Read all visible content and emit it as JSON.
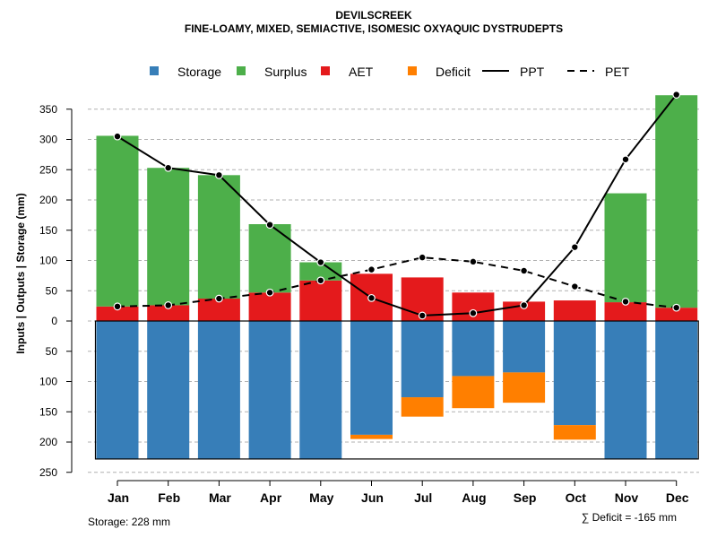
{
  "chart_data": {
    "type": "bar",
    "title": "DEVILSCREEK",
    "subtitle": "FINE-LOAMY, MIXED, SEMIACTIVE, ISOMESIC OXYAQUIC DYSTRUDEPTS",
    "ylabel": "Inputs | Outputs | Storage    (mm)",
    "categories": [
      "Jan",
      "Feb",
      "Mar",
      "Apr",
      "May",
      "Jun",
      "Jul",
      "Aug",
      "Sep",
      "Oct",
      "Nov",
      "Dec"
    ],
    "ylim": [
      -250,
      350
    ],
    "yticks": [
      {
        "value": 350,
        "label": "350"
      },
      {
        "value": 300,
        "label": "300"
      },
      {
        "value": 250,
        "label": "250"
      },
      {
        "value": 200,
        "label": "200"
      },
      {
        "value": 150,
        "label": "150"
      },
      {
        "value": 100,
        "label": "100"
      },
      {
        "value": 50,
        "label": "50"
      },
      {
        "value": 0,
        "label": "0"
      },
      {
        "value": -50,
        "label": "50"
      },
      {
        "value": -100,
        "label": "100"
      },
      {
        "value": -150,
        "label": "150"
      },
      {
        "value": -200,
        "label": "200"
      },
      {
        "value": -250,
        "label": "250"
      }
    ],
    "storage_capacity": 228,
    "legend": [
      {
        "key": "storage",
        "label": "Storage",
        "color": "#377EB8",
        "kind": "box"
      },
      {
        "key": "surplus",
        "label": "Surplus",
        "color": "#4DAF4A",
        "kind": "box"
      },
      {
        "key": "aet",
        "label": "AET",
        "color": "#E41A1C",
        "kind": "box"
      },
      {
        "key": "deficit",
        "label": "Deficit",
        "color": "#FF7F00",
        "kind": "box"
      },
      {
        "key": "ppt",
        "label": "PPT",
        "color": "#000000",
        "kind": "solid"
      },
      {
        "key": "pet",
        "label": "PET",
        "color": "#000000",
        "kind": "dashed"
      }
    ],
    "series": [
      {
        "name": "AET",
        "values": [
          24,
          26,
          37,
          47,
          67,
          78,
          72,
          47,
          32,
          34,
          31,
          22
        ]
      },
      {
        "name": "Surplus",
        "values": [
          282,
          227,
          204,
          113,
          30,
          0,
          0,
          0,
          0,
          0,
          180,
          351
        ]
      },
      {
        "name": "Storage",
        "values": [
          228,
          228,
          228,
          228,
          228,
          188,
          126,
          91,
          85,
          172,
          228,
          228
        ]
      },
      {
        "name": "Deficit",
        "values": [
          0,
          0,
          0,
          0,
          0,
          7,
          32,
          53,
          50,
          24,
          0,
          0
        ]
      },
      {
        "name": "PPT",
        "values": [
          305,
          253,
          241,
          159,
          97,
          38,
          9,
          13,
          26,
          122,
          267,
          374
        ]
      },
      {
        "name": "PET",
        "values": [
          24,
          26,
          37,
          47,
          67,
          85,
          105,
          98,
          83,
          57,
          32,
          22
        ]
      }
    ]
  },
  "footer": {
    "storage": "Storage: 228 mm",
    "deficit": "∑ Deficit = -165 mm"
  }
}
